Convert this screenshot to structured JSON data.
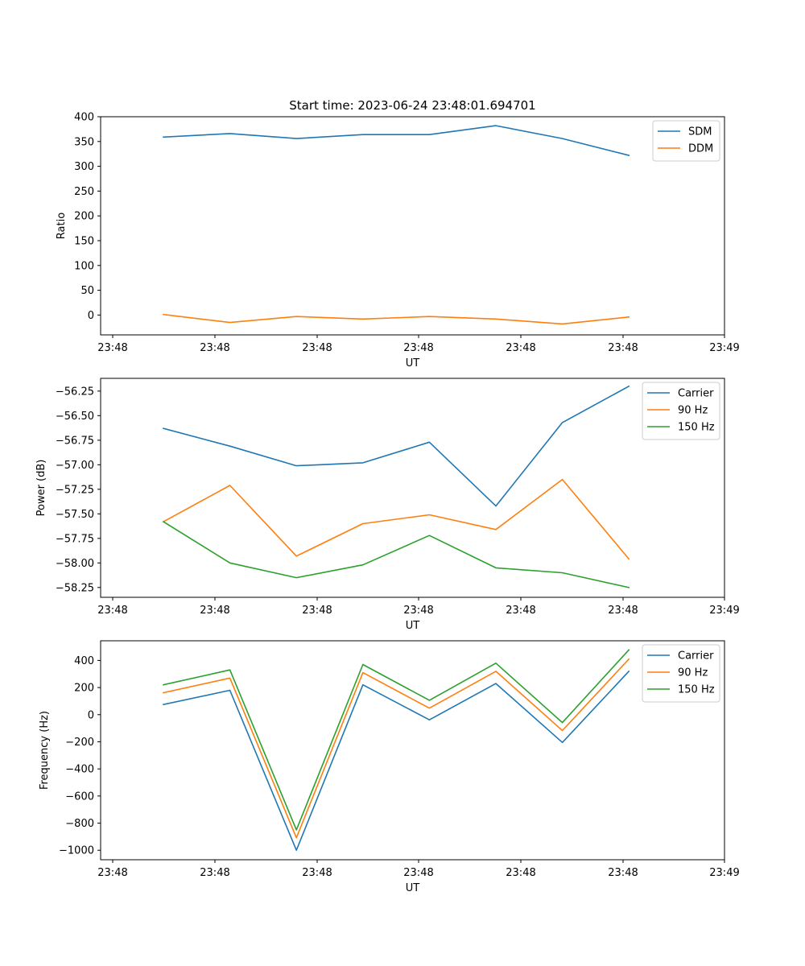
{
  "chart_data": [
    {
      "type": "line",
      "title": "Start time: 2023-06-24 23:48:01.694701",
      "xlabel": "UT",
      "ylabel": "Ratio",
      "ylim": [
        -40,
        400
      ],
      "y_ticks": [
        0,
        50,
        100,
        150,
        200,
        250,
        300,
        350,
        400
      ],
      "y_tick_labels": [
        "0",
        "50",
        "100",
        "150",
        "200",
        "250",
        "300",
        "350",
        "400"
      ],
      "x_tick_labels": [
        "23:48",
        "23:48",
        "23:48",
        "23:48",
        "23:48",
        "23:48",
        "23:48"
      ],
      "last_x_tick_label": "23:49",
      "legend_position": "upper right",
      "series": [
        {
          "name": "SDM",
          "color": "#1f77b4",
          "values": [
            359,
            366,
            356,
            364,
            364,
            382,
            356,
            322
          ]
        },
        {
          "name": "DDM",
          "color": "#ff7f0e",
          "values": [
            1,
            -15,
            -3,
            -8,
            -3,
            -8,
            -18,
            -4
          ]
        }
      ]
    },
    {
      "type": "line",
      "title": "",
      "xlabel": "UT",
      "ylabel": "Power (dB)",
      "ylim": [
        -58.35,
        -56.12
      ],
      "y_ticks": [
        -58.25,
        -58.0,
        -57.75,
        -57.5,
        -57.25,
        -57.0,
        -56.75,
        -56.5,
        -56.25
      ],
      "y_tick_labels": [
        "−58.25",
        "−58.00",
        "−57.75",
        "−57.50",
        "−57.25",
        "−57.00",
        "−56.75",
        "−56.50",
        "−56.25"
      ],
      "x_tick_labels": [
        "23:48",
        "23:48",
        "23:48",
        "23:48",
        "23:48",
        "23:48",
        "23:48"
      ],
      "last_x_tick_label": "23:49",
      "legend_position": "upper right",
      "series": [
        {
          "name": "Carrier",
          "color": "#1f77b4",
          "values": [
            -56.63,
            -56.81,
            -57.01,
            -56.98,
            -56.77,
            -57.42,
            -56.57,
            -56.2
          ]
        },
        {
          "name": "90 Hz",
          "color": "#ff7f0e",
          "values": [
            -57.58,
            -57.21,
            -57.93,
            -57.6,
            -57.51,
            -57.66,
            -57.15,
            -57.96
          ]
        },
        {
          "name": "150 Hz",
          "color": "#2ca02c",
          "values": [
            -57.58,
            -58.0,
            -58.15,
            -58.02,
            -57.72,
            -58.05,
            -58.1,
            -58.25
          ]
        }
      ]
    },
    {
      "type": "line",
      "title": "",
      "xlabel": "UT",
      "ylabel": "Frequency (Hz)",
      "ylim": [
        -1070,
        545
      ],
      "y_ticks": [
        -1000,
        -800,
        -600,
        -400,
        -200,
        0,
        200,
        400
      ],
      "y_tick_labels": [
        "−1000",
        "−800",
        "−600",
        "−400",
        "−200",
        "0",
        "200",
        "400"
      ],
      "x_tick_labels": [
        "23:48",
        "23:48",
        "23:48",
        "23:48",
        "23:48",
        "23:48",
        "23:48"
      ],
      "last_x_tick_label": "23:49",
      "legend_position": "upper right",
      "series": [
        {
          "name": "Carrier",
          "color": "#1f77b4",
          "values": [
            75,
            180,
            -1000,
            220,
            -38,
            230,
            -205,
            320
          ]
        },
        {
          "name": "90 Hz",
          "color": "#ff7f0e",
          "values": [
            162,
            270,
            -908,
            310,
            48,
            320,
            -117,
            410
          ]
        },
        {
          "name": "150 Hz",
          "color": "#2ca02c",
          "values": [
            220,
            330,
            -850,
            370,
            106,
            380,
            -58,
            478
          ]
        }
      ]
    }
  ]
}
